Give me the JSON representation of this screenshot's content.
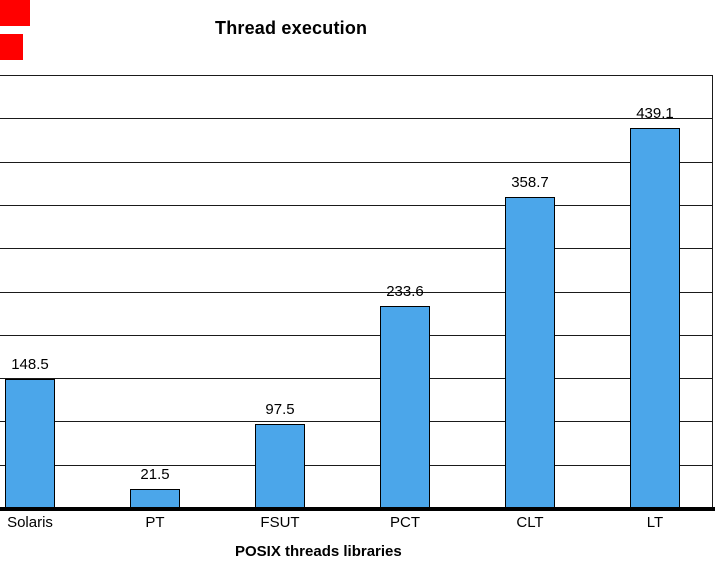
{
  "decor": {
    "marker_color": "#ff0000"
  },
  "chart_data": {
    "type": "bar",
    "title": "Thread execution",
    "xlabel": "POSIX threads libraries",
    "ylabel": "",
    "categories": [
      "Solaris",
      "PT",
      "FSUT",
      "PCT",
      "CLT",
      "LT"
    ],
    "values": [
      148.5,
      21.5,
      97.5,
      233.6,
      358.7,
      439.1
    ],
    "ylim": [
      0,
      500
    ],
    "grid_step": 50,
    "grid": true,
    "legend": "none",
    "bar_fill": "#4BA6EA",
    "bar_border": "#000000",
    "grid_color": "#1a1a1a",
    "note": "left side of plot cropped; no y-axis tick labels visible"
  }
}
